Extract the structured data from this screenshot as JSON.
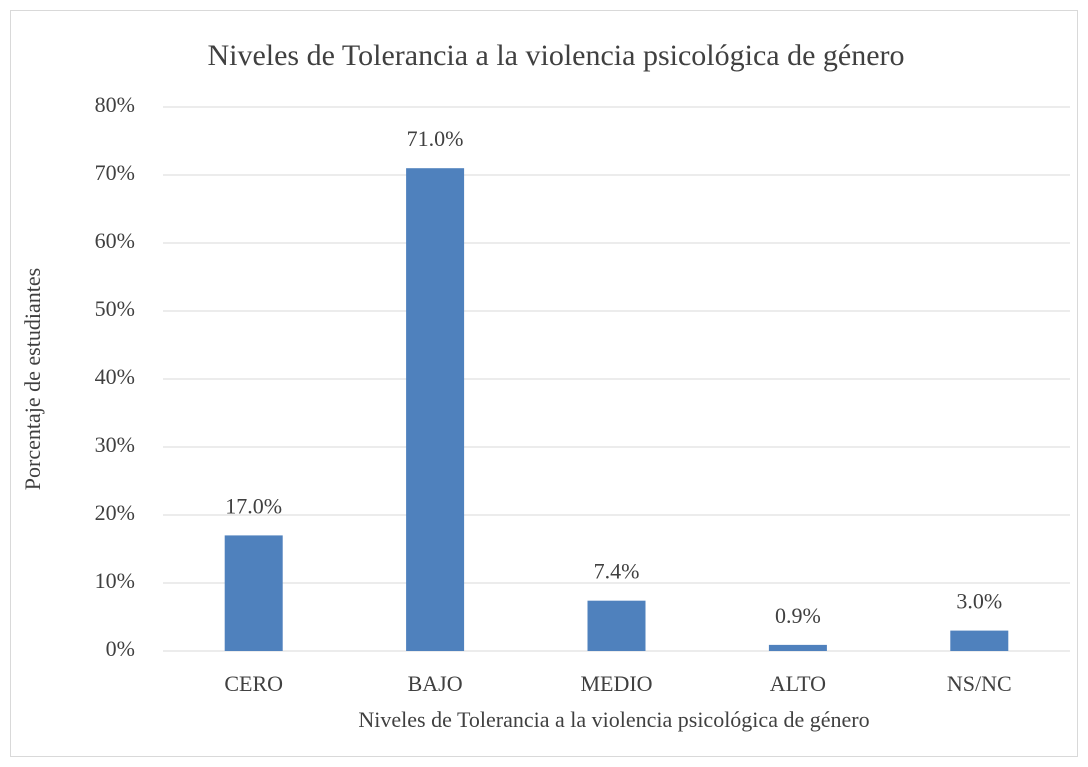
{
  "chart_data": {
    "type": "bar",
    "title": "Niveles de Tolerancia a la violencia psicológica de género",
    "x_label": "Niveles de Tolerancia a la violencia psicológica de género",
    "y_label": "Porcentaje de estudiantes",
    "categories": [
      "CERO",
      "BAJO",
      "MEDIO",
      "ALTO",
      "NS/NC"
    ],
    "values": [
      17,
      71,
      7.4,
      0.9,
      3
    ],
    "value_labels": [
      "17.0%",
      "71.0%",
      "7.4%",
      "0.9%",
      "3.0%"
    ],
    "color": "#4f81bd",
    "ylim": [
      0,
      80
    ],
    "yticks": [
      {
        "value": 0,
        "label": "0%"
      },
      {
        "value": 10,
        "label": "10%"
      },
      {
        "value": 20,
        "label": "20%"
      },
      {
        "value": 30,
        "label": "30%"
      },
      {
        "value": 40,
        "label": "40%"
      },
      {
        "value": 50,
        "label": "50%"
      },
      {
        "value": 60,
        "label": "60%"
      },
      {
        "value": 70,
        "label": "70%"
      },
      {
        "value": 80,
        "label": "80%"
      }
    ],
    "grid": true
  }
}
